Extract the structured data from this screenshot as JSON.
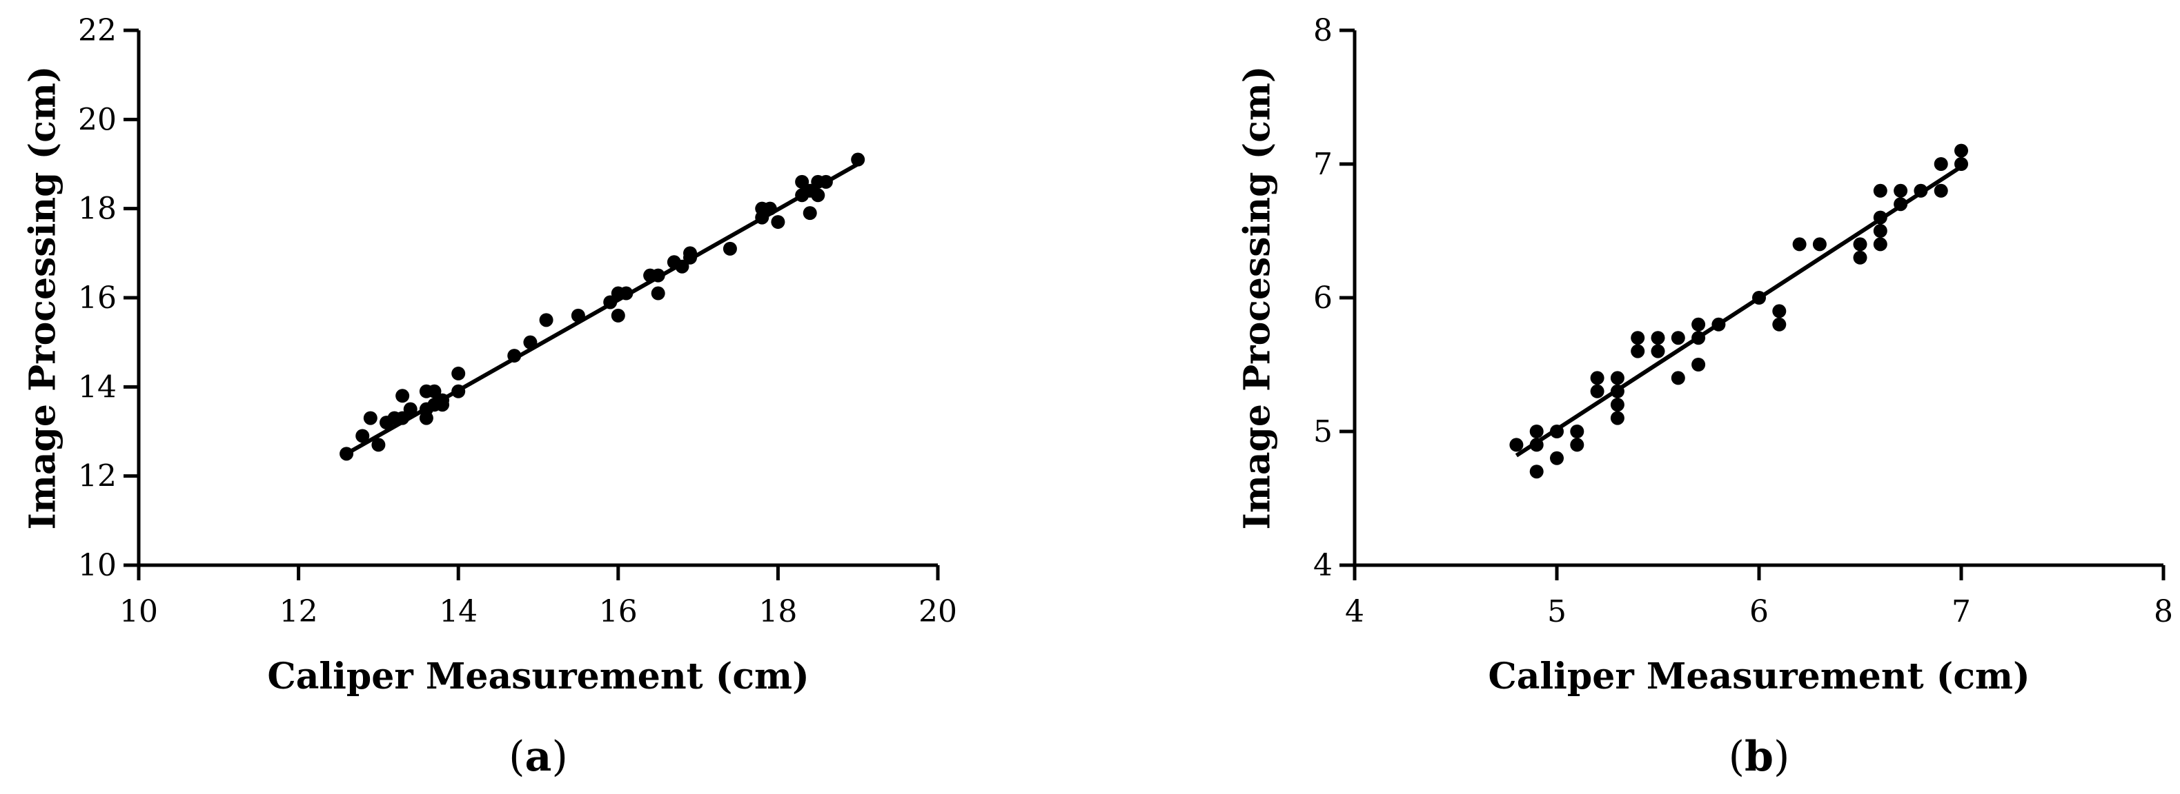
{
  "chart_data": [
    {
      "type": "scatter",
      "panel_label": "a",
      "xlabel": "Caliper Measurement (cm)",
      "ylabel": "Image Processing (cm)",
      "xlim": [
        10,
        20
      ],
      "ylim": [
        10,
        22
      ],
      "xticks": [
        "10",
        "12",
        "14",
        "16",
        "18",
        "20"
      ],
      "yticks": [
        "10",
        "12",
        "14",
        "16",
        "18",
        "20",
        "22"
      ],
      "grid": false,
      "trendline": {
        "x": [
          12.6,
          19.0
        ],
        "y": [
          12.5,
          19.0
        ]
      },
      "points": {
        "x": [
          12.6,
          12.8,
          12.9,
          13.0,
          13.1,
          13.2,
          13.3,
          13.3,
          13.4,
          13.6,
          13.6,
          13.6,
          13.7,
          13.7,
          13.8,
          13.8,
          14.0,
          14.0,
          14.7,
          14.9,
          15.1,
          15.5,
          15.9,
          16.0,
          16.0,
          16.1,
          16.4,
          16.5,
          16.5,
          16.7,
          16.8,
          16.9,
          16.9,
          17.4,
          17.8,
          17.8,
          17.9,
          18.0,
          18.3,
          18.3,
          18.4,
          18.4,
          18.5,
          18.5,
          18.6,
          19.0
        ],
        "y": [
          12.5,
          12.9,
          13.3,
          12.7,
          13.2,
          13.3,
          13.3,
          13.8,
          13.5,
          13.3,
          13.5,
          13.9,
          13.6,
          13.9,
          13.6,
          13.7,
          13.9,
          14.3,
          14.7,
          15.0,
          15.5,
          15.6,
          15.9,
          15.6,
          16.1,
          16.1,
          16.5,
          16.1,
          16.5,
          16.8,
          16.7,
          16.9,
          17.0,
          17.1,
          17.8,
          18.0,
          18.0,
          17.7,
          18.3,
          18.6,
          17.9,
          18.4,
          18.3,
          18.6,
          18.6,
          19.1
        ]
      }
    },
    {
      "type": "scatter",
      "panel_label": "b",
      "xlabel": "Caliper Measurement (cm)",
      "ylabel": "Image Processing (cm)",
      "xlim": [
        4,
        8
      ],
      "ylim": [
        4,
        8
      ],
      "xticks": [
        "4",
        "5",
        "6",
        "7",
        "8"
      ],
      "yticks": [
        "4",
        "5",
        "6",
        "7",
        "8"
      ],
      "grid": false,
      "trendline": {
        "x": [
          4.8,
          7.0
        ],
        "y": [
          4.82,
          6.98
        ]
      },
      "points": {
        "x": [
          4.8,
          4.9,
          4.9,
          4.9,
          5.0,
          5.0,
          5.1,
          5.1,
          5.2,
          5.2,
          5.3,
          5.3,
          5.3,
          5.3,
          5.4,
          5.4,
          5.5,
          5.5,
          5.6,
          5.6,
          5.7,
          5.7,
          5.7,
          5.8,
          6.0,
          6.1,
          6.1,
          6.2,
          6.3,
          6.5,
          6.5,
          6.6,
          6.6,
          6.6,
          6.6,
          6.7,
          6.7,
          6.8,
          6.9,
          6.9,
          7.0,
          7.0
        ],
        "y": [
          4.9,
          4.9,
          5.0,
          4.7,
          5.0,
          4.8,
          4.9,
          5.0,
          5.4,
          5.3,
          5.4,
          5.2,
          5.1,
          5.3,
          5.7,
          5.6,
          5.7,
          5.6,
          5.7,
          5.4,
          5.8,
          5.7,
          5.5,
          5.8,
          6.0,
          5.9,
          5.8,
          6.4,
          6.4,
          6.4,
          6.3,
          6.8,
          6.6,
          6.5,
          6.4,
          6.8,
          6.7,
          6.8,
          7.0,
          6.8,
          7.1,
          7.0
        ]
      }
    }
  ]
}
